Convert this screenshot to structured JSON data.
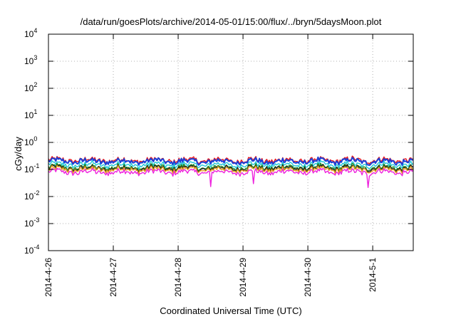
{
  "chart_data": {
    "type": "line",
    "title": "/data/run/goesPlots/archive/2014-05-01/15:00/flux/../bryn/5daysMoon.plot",
    "xlabel": "Coordinated Universal Time (UTC)",
    "ylabel": "cGy/day",
    "yscale": "log",
    "ylim": [
      0.0001,
      10000
    ],
    "xlim": [
      "2014-04-26",
      "2014-05-01T15:00"
    ],
    "grid": true,
    "legend": "none",
    "y_ticks": [
      {
        "base": "10",
        "exp": "-4",
        "value": 0.0001
      },
      {
        "base": "10",
        "exp": "-3",
        "value": 0.001
      },
      {
        "base": "10",
        "exp": "-2",
        "value": 0.01
      },
      {
        "base": "10",
        "exp": "-1",
        "value": 0.1
      },
      {
        "base": "10",
        "exp": "0",
        "value": 1
      },
      {
        "base": "10",
        "exp": "1",
        "value": 10
      },
      {
        "base": "10",
        "exp": "2",
        "value": 100
      },
      {
        "base": "10",
        "exp": "3",
        "value": 1000
      },
      {
        "base": "10",
        "exp": "4",
        "value": 10000
      }
    ],
    "x_ticks": [
      {
        "label": "2014-4-26",
        "value": "2014-04-26"
      },
      {
        "label": "2014-4-27",
        "value": "2014-04-27"
      },
      {
        "label": "2014-4-28",
        "value": "2014-04-28"
      },
      {
        "label": "2014-4-29",
        "value": "2014-04-29"
      },
      {
        "label": "2014-4-30",
        "value": "2014-04-30"
      },
      {
        "label": "2014-5-1",
        "value": "2014-05-01"
      }
    ],
    "series": [
      {
        "color": "#e8191f",
        "approx_level": 0.22
      },
      {
        "color": "#1a3fd8",
        "approx_level": 0.2
      },
      {
        "color": "#22c8d8",
        "approx_level": 0.15
      },
      {
        "color": "#1f8a1f",
        "approx_level": 0.12
      },
      {
        "color": "#222222",
        "approx_level": 0.11
      },
      {
        "color": "#e8a020",
        "approx_level": 0.1
      },
      {
        "color": "#ee22dd",
        "approx_level": 0.08
      }
    ]
  }
}
